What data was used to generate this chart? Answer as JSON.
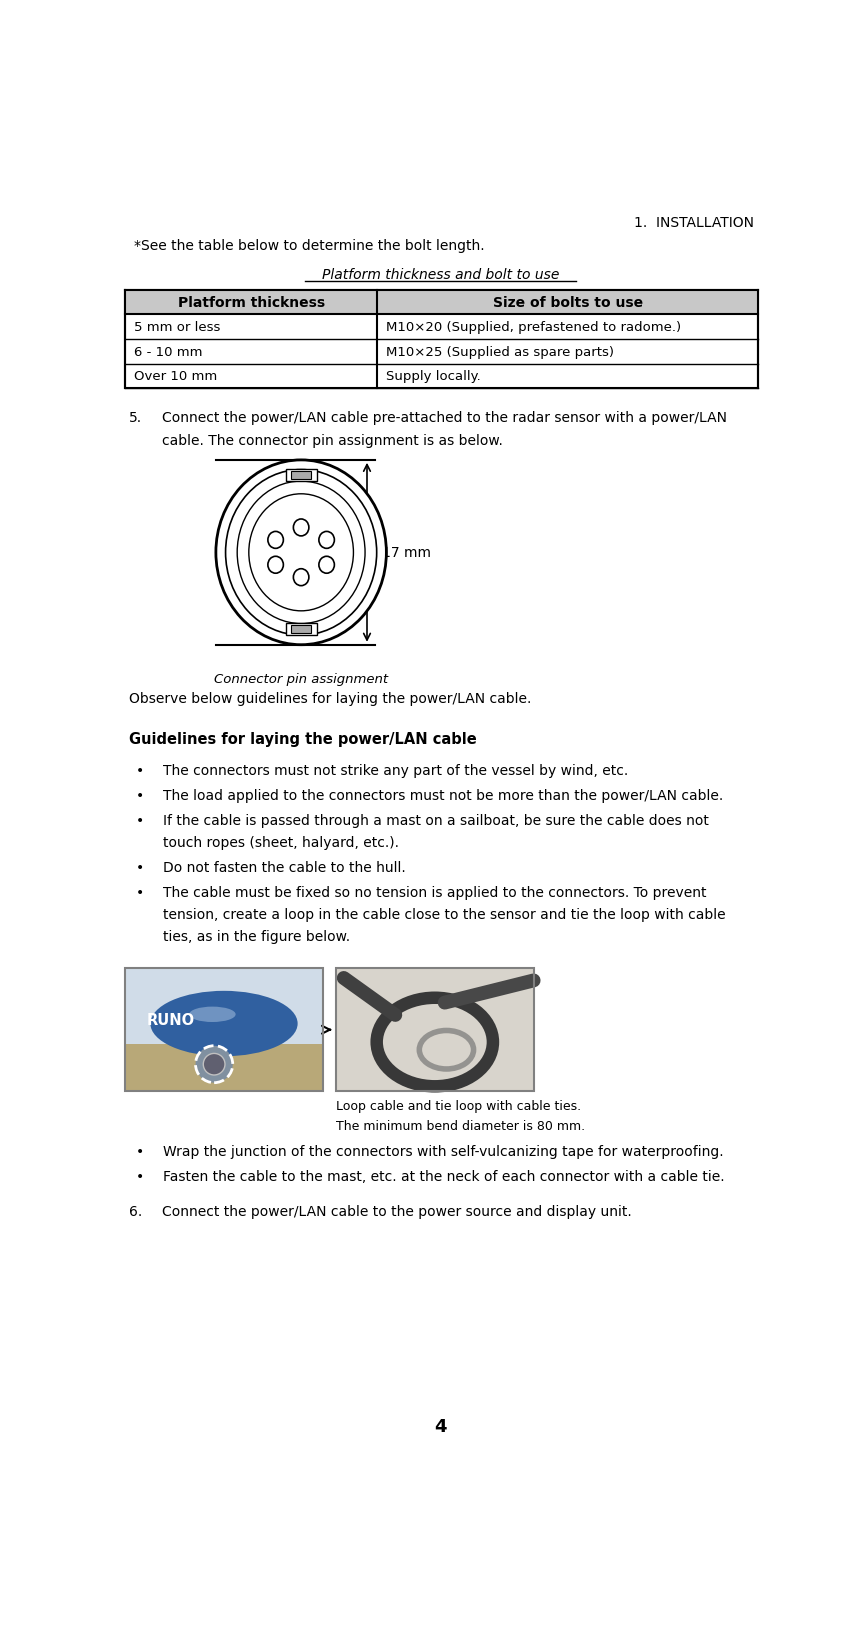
{
  "bg_color": "#ffffff",
  "header_text": "1.  INSTALLATION",
  "intro_text": "*See the table below to determine the bolt length.",
  "table_title": "Platform thickness and bolt to use",
  "table_headers": [
    "Platform thickness",
    "Size of bolts to use"
  ],
  "table_rows": [
    [
      "5 mm or less",
      "M10×20 (Supplied, prefastened to radome.)"
    ],
    [
      "6 - 10 mm",
      "M10×25 (Supplied as spare parts)"
    ],
    [
      "Over 10 mm",
      "Supply locally."
    ]
  ],
  "connector_label": "Connector pin assignment",
  "dimension_label": "17 mm",
  "observe_text": "Observe below guidelines for laying the power/LAN cable.",
  "guidelines_title": "Guidelines for laying the power/LAN cable",
  "bullets": [
    "The connectors must not strike any part of the vessel by wind, etc.",
    "The load applied to the connectors must not be more than the power/LAN cable.",
    "If the cable is passed through a mast on a sailboat, be sure the cable does not\ntouch ropes (sheet, halyard, etc.).",
    "Do not fasten the cable to the hull.",
    "The cable must be fixed so no tension is applied to the connectors. To prevent\ntension, create a loop in the cable close to the sensor and tie the loop with cable\nties, as in the figure below."
  ],
  "loop_caption_line1": "Loop cable and tie loop with cable ties.",
  "loop_caption_line2": "The minimum bend diameter is 80 mm.",
  "bullet6_texts": [
    "Wrap the junction of the connectors with self-vulcanizing tape for waterproofing.",
    "Fasten the cable to the mast, etc. at the neck of each connector with a cable tie."
  ],
  "step6_text": "Connect the power/LAN cable to the power source and display unit.",
  "page_number": "4",
  "step5_line1": "Connect the power/LAN cable pre-attached to the radar sensor with a power/LAN",
  "step5_line2": "cable. The connector pin assignment is as below."
}
